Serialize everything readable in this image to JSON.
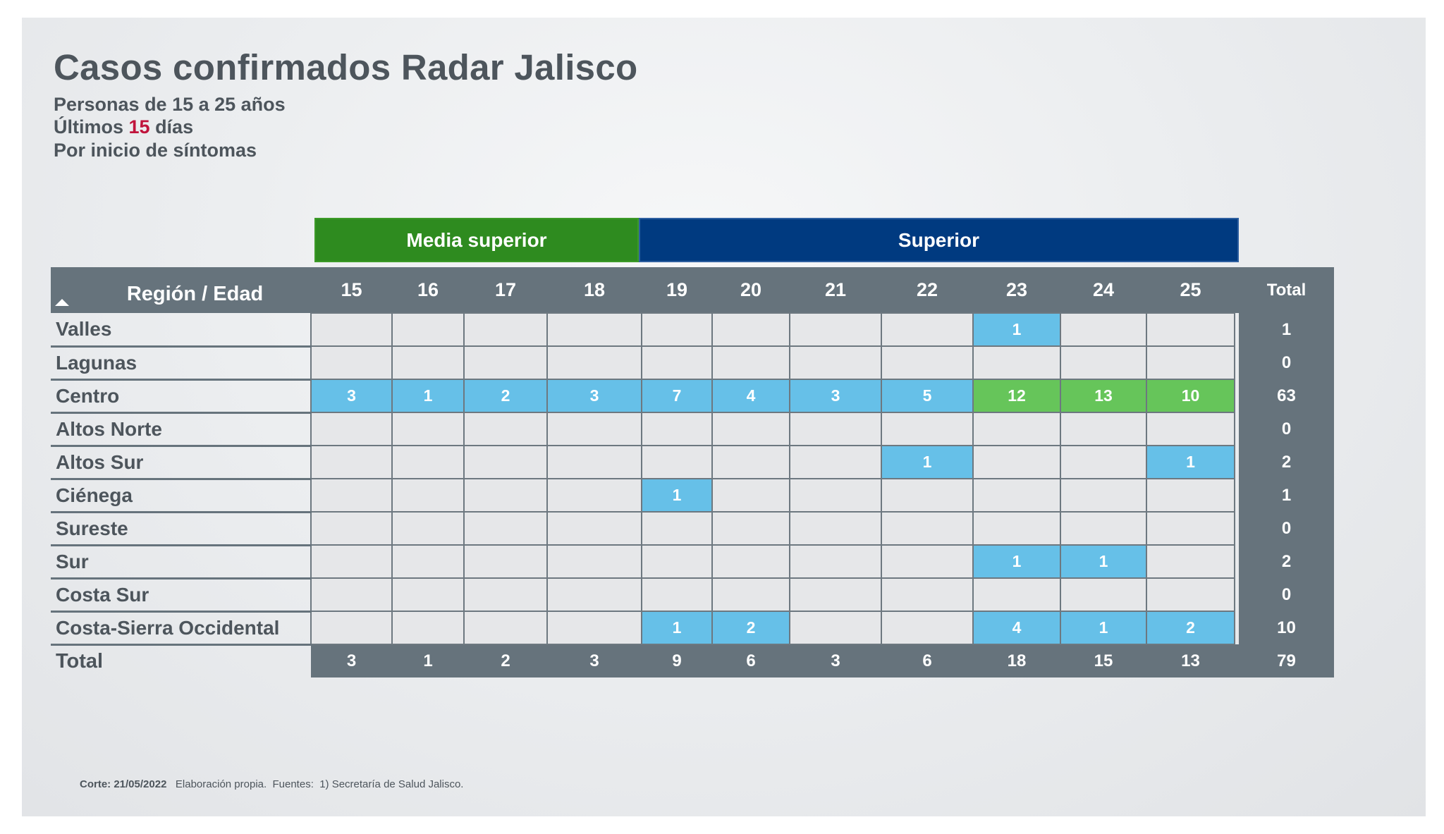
{
  "header": {
    "title": "Casos confirmados Radar Jalisco",
    "subtitle1": "Personas de 15 a 25 años",
    "subtitle2_prefix": "Últimos ",
    "subtitle2_number": "15",
    "subtitle2_suffix": " días",
    "subtitle3": "Por inicio de síntomas"
  },
  "bands": {
    "media_superior": "Media superior",
    "superior": "Superior"
  },
  "colors": {
    "media_superior_band": "#2e8b1f",
    "superior_band": "#003a80",
    "cell_low": "#66c0e8",
    "cell_high": "#66c55a",
    "header_bg": "#66737c",
    "highlight_text": "#c0143c"
  },
  "chart_data": {
    "type": "table",
    "title": "Casos confirmados Radar Jalisco",
    "row_header": "Región / Edad",
    "columns": [
      "15",
      "16",
      "17",
      "18",
      "19",
      "20",
      "21",
      "22",
      "23",
      "24",
      "25"
    ],
    "total_label": "Total",
    "rows": [
      {
        "region": "Valles",
        "values": [
          null,
          null,
          null,
          null,
          null,
          null,
          null,
          null,
          1,
          null,
          null
        ],
        "total": 1
      },
      {
        "region": "Lagunas",
        "values": [
          null,
          null,
          null,
          null,
          null,
          null,
          null,
          null,
          null,
          null,
          null
        ],
        "total": 0
      },
      {
        "region": "Centro",
        "values": [
          3,
          1,
          2,
          3,
          7,
          4,
          3,
          5,
          12,
          13,
          10
        ],
        "total": 63
      },
      {
        "region": "Altos Norte",
        "values": [
          null,
          null,
          null,
          null,
          null,
          null,
          null,
          null,
          null,
          null,
          null
        ],
        "total": 0
      },
      {
        "region": "Altos Sur",
        "values": [
          null,
          null,
          null,
          null,
          null,
          null,
          null,
          1,
          null,
          null,
          1
        ],
        "total": 2
      },
      {
        "region": "Ciénega",
        "values": [
          null,
          null,
          null,
          null,
          1,
          null,
          null,
          null,
          null,
          null,
          null
        ],
        "total": 1
      },
      {
        "region": "Sureste",
        "values": [
          null,
          null,
          null,
          null,
          null,
          null,
          null,
          null,
          null,
          null,
          null
        ],
        "total": 0
      },
      {
        "region": "Sur",
        "values": [
          null,
          null,
          null,
          null,
          null,
          null,
          null,
          null,
          1,
          1,
          null
        ],
        "total": 2
      },
      {
        "region": "Costa Sur",
        "values": [
          null,
          null,
          null,
          null,
          null,
          null,
          null,
          null,
          null,
          null,
          null
        ],
        "total": 0
      },
      {
        "region": "Costa-Sierra Occidental",
        "values": [
          null,
          null,
          null,
          null,
          1,
          2,
          null,
          null,
          4,
          1,
          2
        ],
        "total": 10
      }
    ],
    "column_totals": [
      3,
      1,
      2,
      3,
      9,
      6,
      3,
      6,
      18,
      15,
      13
    ],
    "grand_total": 79,
    "groups": [
      {
        "name": "Media superior",
        "columns": [
          "15",
          "16",
          "17",
          "18"
        ]
      },
      {
        "name": "Superior",
        "columns": [
          "19",
          "20",
          "21",
          "22",
          "23",
          "24",
          "25"
        ]
      }
    ],
    "high_threshold": 10
  },
  "footer": {
    "corte": "Corte: 21/05/2022",
    "text": "   Elaboración propia.  Fuentes:  1) Secretaría de Salud Jalisco."
  }
}
